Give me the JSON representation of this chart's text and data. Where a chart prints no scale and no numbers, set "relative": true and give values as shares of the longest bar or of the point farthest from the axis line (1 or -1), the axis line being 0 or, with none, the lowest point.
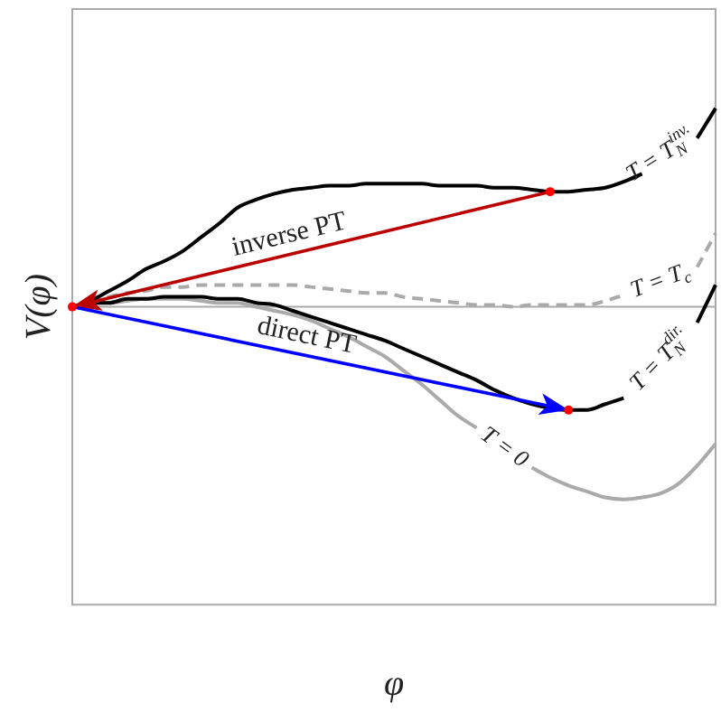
{
  "chart_data": {
    "type": "line",
    "relative": true,
    "xlabel": "φ",
    "ylabel": "V(φ)",
    "legend": false,
    "grid": false,
    "marker": "none",
    "categories": [
      null,
      null,
      null,
      null,
      null,
      null,
      null,
      null,
      null,
      null,
      null,
      null,
      null,
      null,
      null,
      null,
      null,
      null,
      null,
      null,
      null,
      null,
      null,
      null,
      null,
      null,
      null,
      null,
      null,
      null,
      null,
      null,
      null,
      null,
      null,
      null
    ],
    "annotations": [
      "inverse PT",
      "direct PT"
    ],
    "series": [
      {
        "name": "T = T$_{N}$$^{inv.}$",
        "color": "#000000",
        "values": [
          0,
          0.03,
          0.08,
          0.13,
          0.19,
          0.23,
          0.28,
          0.35,
          0.42,
          0.5,
          0.54,
          0.57,
          0.59,
          0.6,
          0.61,
          0.61,
          0.62,
          0.62,
          0.62,
          0.62,
          0.61,
          0.61,
          0.61,
          0.6,
          0.6,
          0.59,
          0.58,
          0.58,
          0.59,
          0.6,
          0.63,
          0.67,
          null,
          null,
          0.85,
          1
        ]
      },
      {
        "name": "T = T$_{c}$",
        "color": "#aaaaaa",
        "line_style": "dashed",
        "values": [
          0,
          0.02,
          0.05,
          0.07,
          0.08,
          0.1,
          0.1,
          0.11,
          0.11,
          0.11,
          0.11,
          0.11,
          0.11,
          0.1,
          0.09,
          0.08,
          0.07,
          0.07,
          0.05,
          0.04,
          0.03,
          0.02,
          0.01,
          0.01,
          0,
          0.01,
          0.01,
          0.01,
          0.01,
          0.03,
          0.06,
          null,
          null,
          null,
          0.2,
          0.37
        ]
      },
      {
        "name": "T = T$_{N}$$^{dir.}$",
        "color": "#000000",
        "values": [
          0,
          0.02,
          0.02,
          0.04,
          0.04,
          0.05,
          0.05,
          0.05,
          0.04,
          0.04,
          0.02,
          0.01,
          -0.02,
          -0.05,
          -0.08,
          -0.11,
          -0.14,
          -0.17,
          -0.21,
          -0.25,
          -0.29,
          -0.33,
          -0.37,
          -0.42,
          -0.46,
          -0.49,
          -0.51,
          -0.52,
          -0.52,
          -0.49,
          -0.46,
          null,
          null,
          null,
          -0.08,
          0.11
        ]
      },
      {
        "name": "T = 0",
        "color": "#aaaaaa",
        "values": [
          0,
          0.02,
          0.02,
          0.03,
          0.04,
          0.04,
          0.04,
          0.03,
          0.02,
          0.02,
          0,
          -0.02,
          -0.04,
          -0.07,
          -0.11,
          -0.15,
          -0.2,
          -0.25,
          -0.32,
          -0.39,
          -0.47,
          -0.55,
          -0.61,
          null,
          null,
          -0.81,
          -0.86,
          -0.9,
          -0.93,
          -0.96,
          -0.97,
          -0.96,
          -0.94,
          -0.89,
          -0.8,
          -0.69
        ]
      }
    ]
  }
}
